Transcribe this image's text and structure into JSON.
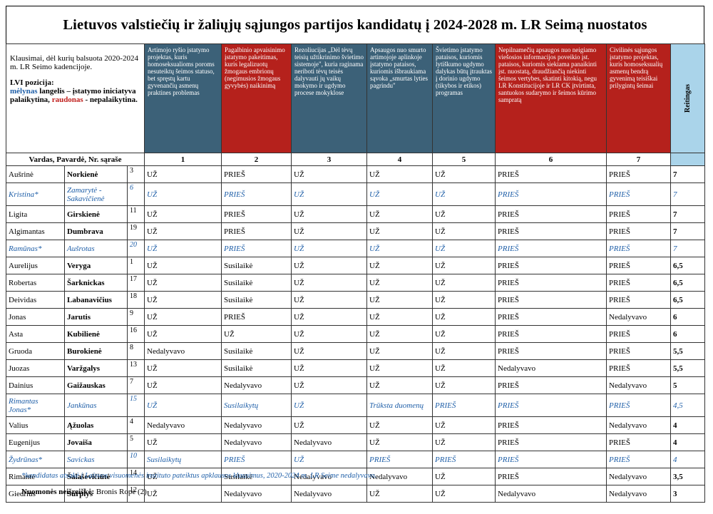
{
  "title": "Lietuvos valstiečių ir žaliųjų sąjungos partijos kandidatų į 2024-2028 m. LR Seimą nuostatos",
  "intro": {
    "line1": "Klausimai, dėl kurių balsuota 2020-2024 m. LR Seimo kadencijoje.",
    "line2": "LVI pozicija:",
    "blue_word": "mėlynas",
    "blue_rest": " langelis – įstatymo iniciatyva palaikytina,",
    "red_word": "raudonas",
    "red_rest": " - nepalaikytina."
  },
  "questions": [
    {
      "text": "Artimojo ryšio įstatymo projektas, kuris homoseksualioms poroms nesuteiktų šeimos statuso, bet spręstų kartu gyvenančių asmenų praktines problemas",
      "color": "blue",
      "num": "1"
    },
    {
      "text": "Pagalbinio apvaisinimo įstatymo pakeitimas, kuris legalizuotų žmogaus embrionų (negimusios žmogaus gyvybės) naikinimą",
      "color": "red",
      "num": "2"
    },
    {
      "text": "Rezoliucijas „Dėl tėvų teisių užtikrinimo švietimo sistemoje\", kuria raginama neriboti tėvų teisės dalyvauti jų vaikų mokymo ir ugdymo procese mokyklose",
      "color": "blue",
      "num": "3"
    },
    {
      "text": "Apsaugos nuo smurto artimojoje aplinkoje įstatymo pataisos, kuriomis išbraukiama sąvoka „smurtas lyties pagrindu\"",
      "color": "blue",
      "num": "4"
    },
    {
      "text": "Švietimo įstatymo pataisos, kuriomis lytiškumo ugdymo dalykas būtų įtrauktas į dorinio ugdymo (tikybos ir etikos) programas",
      "color": "blue",
      "num": "5"
    },
    {
      "text": "Nepilnamečių apsaugos nuo neigiamo viešosios informacijos poveikio įst. pataisos, kuriomis siekiama panaikinti įst. nuostatą, draudžiančią niekinti šeimos vertybes, skatinti kitokią, negu LR Konstitucijoje ir LR CK įtvirtinta, santuokos sudarymo ir šeimos kūrimo sampratą",
      "color": "red",
      "num": "6"
    },
    {
      "text": "Civilinės sąjungos įstatymo projektas, kuris homoseksualių asmenų bendrą gyvenimą teisiškai prilygintų šeimai",
      "color": "red",
      "num": "7"
    }
  ],
  "rank_label": "Reitingas",
  "name_header": "Vardas, Pavardė, Nr. sąraše",
  "rows": [
    {
      "first": "Aušrinė",
      "last": "Norkienė",
      "nr": "3",
      "v": [
        "UŽ",
        "PRIEŠ",
        "UŽ",
        "UŽ",
        "UŽ",
        "PRIEŠ",
        "PRIEŠ"
      ],
      "rank": "7",
      "lvi": false
    },
    {
      "first": "Kristina*",
      "last": "Zamarytė - Sakavičienė",
      "nr": "6",
      "v": [
        "UŽ",
        "PRIEŠ",
        "UŽ",
        "UŽ",
        "UŽ",
        "PRIEŠ",
        "PRIEŠ"
      ],
      "rank": "7",
      "lvi": true
    },
    {
      "first": "Ligita",
      "last": "Girskienė",
      "nr": "11",
      "v": [
        "UŽ",
        "PRIEŠ",
        "UŽ",
        "UŽ",
        "UŽ",
        "PRIEŠ",
        "PRIEŠ"
      ],
      "rank": "7",
      "lvi": false
    },
    {
      "first": "Algimantas",
      "last": "Dumbrava",
      "nr": "19",
      "v": [
        "UŽ",
        "PRIEŠ",
        "UŽ",
        "UŽ",
        "UŽ",
        "PRIEŠ",
        "PRIEŠ"
      ],
      "rank": "7",
      "lvi": false
    },
    {
      "first": "Ramūnas*",
      "last": "Aušrotas",
      "nr": "20",
      "v": [
        "UŽ",
        "PRIEŠ",
        "UŽ",
        "UŽ",
        "UŽ",
        "PRIEŠ",
        "PRIEŠ"
      ],
      "rank": "7",
      "lvi": true
    },
    {
      "first": "Aurelijus",
      "last": "Veryga",
      "nr": "1",
      "v": [
        "UŽ",
        "Susilaikė",
        "UŽ",
        "UŽ",
        "UŽ",
        "PRIEŠ",
        "PRIEŠ"
      ],
      "rank": "6,5",
      "lvi": false
    },
    {
      "first": "Robertas",
      "last": "Šarknickas",
      "nr": "17",
      "v": [
        "UŽ",
        "Susilaikė",
        "UŽ",
        "UŽ",
        "UŽ",
        "PRIEŠ",
        "PRIEŠ"
      ],
      "rank": "6,5",
      "lvi": false
    },
    {
      "first": "Deividas",
      "last": "Labanavičius",
      "nr": "18",
      "v": [
        "UŽ",
        "Susilaikė",
        "UŽ",
        "UŽ",
        "UŽ",
        "PRIEŠ",
        "PRIEŠ"
      ],
      "rank": "6,5",
      "lvi": false
    },
    {
      "first": "Jonas",
      "last": "Jarutis",
      "nr": "9",
      "v": [
        "UŽ",
        "PRIEŠ",
        "UŽ",
        "UŽ",
        "UŽ",
        "PRIEŠ",
        "Nedalyvavo"
      ],
      "rank": "6",
      "lvi": false
    },
    {
      "first": "Asta",
      "last": "Kubilienė",
      "nr": "16",
      "v": [
        "UŽ",
        "UŽ",
        "UŽ",
        "UŽ",
        "UŽ",
        "PRIEŠ",
        "PRIEŠ"
      ],
      "rank": "6",
      "lvi": false
    },
    {
      "first": "Gruoda",
      "last": "Burokienė",
      "nr": "8",
      "v": [
        "Nedalyvavo",
        "Susilaikė",
        "UŽ",
        "UŽ",
        "UŽ",
        "PRIEŠ",
        "PRIEŠ"
      ],
      "rank": "5,5",
      "lvi": false
    },
    {
      "first": "Juozas",
      "last": "Varžgalys",
      "nr": "13",
      "v": [
        "UŽ",
        "Susilaikė",
        "UŽ",
        "UŽ",
        "UŽ",
        "Nedalyvavo",
        "PRIEŠ"
      ],
      "rank": "5,5",
      "lvi": false
    },
    {
      "first": "Dainius",
      "last": "Gaižauskas",
      "nr": "7",
      "v": [
        "UŽ",
        "Nedalyvavo",
        "UŽ",
        "UŽ",
        "UŽ",
        "PRIEŠ",
        "Nedalyvavo"
      ],
      "rank": "5",
      "lvi": false
    },
    {
      "first": "Rimantas Jonas*",
      "last": "Jankūnas",
      "nr": "15",
      "v": [
        "UŽ",
        "Susilaikytų",
        "UŽ",
        "Trūksta duomenų",
        "PRIEŠ",
        "PRIEŠ",
        "PRIEŠ"
      ],
      "rank": "4,5",
      "lvi": true
    },
    {
      "first": "Valius",
      "last": "Ąžuolas",
      "nr": "4",
      "v": [
        "Nedalyvavo",
        "Nedalyvavo",
        "UŽ",
        "UŽ",
        "UŽ",
        "PRIEŠ",
        "Nedalyvavo"
      ],
      "rank": "4",
      "lvi": false
    },
    {
      "first": "Eugenijus",
      "last": "Jovaiša",
      "nr": "5",
      "v": [
        "UŽ",
        "Nedalyvavo",
        "Nedalyvavo",
        "UŽ",
        "UŽ",
        "PRIEŠ",
        "PRIEŠ"
      ],
      "rank": "4",
      "lvi": false
    },
    {
      "first": "Žydrūnas*",
      "last": "Savickas",
      "nr": "10",
      "v": [
        "Susilaikytų",
        "PRIEŠ",
        "UŽ",
        "PRIEŠ",
        "PRIEŠ",
        "PRIEŠ",
        "PRIEŠ"
      ],
      "rank": "4",
      "lvi": true
    },
    {
      "first": "Rimantė",
      "last": "Šalaševičiūtė",
      "nr": "14",
      "v": [
        "UŽ",
        "Susilaikė",
        "Nedalyvavo",
        "Nedalyvavo",
        "UŽ",
        "PRIEŠ",
        "Nedalyvavo"
      ],
      "rank": "3,5",
      "lvi": false
    },
    {
      "first": "Giedrius",
      "last": "Surplys",
      "nr": "12",
      "v": [
        "UŽ",
        "Nedalyvavo",
        "Nedalyvavo",
        "UŽ",
        "UŽ",
        "Nedalyvavo",
        "Nedalyvavo"
      ],
      "rank": "3",
      "lvi": false
    }
  ],
  "footnote": "*kandidatas atsakė į Laisvos visuomenės instituto pateiktus apklausos klausimus, 2020-2024 m. LR Seime nedalyvavo.",
  "no_opinion_label": "Nuomonės neišreiškė:",
  "no_opinion_value": "Bronis Ropė (2)",
  "colors": {
    "blue_header": "#3c6178",
    "red_header": "#b5211c",
    "rank_bg": "#aad4ea",
    "lvi_text": "#1f5fa8"
  }
}
